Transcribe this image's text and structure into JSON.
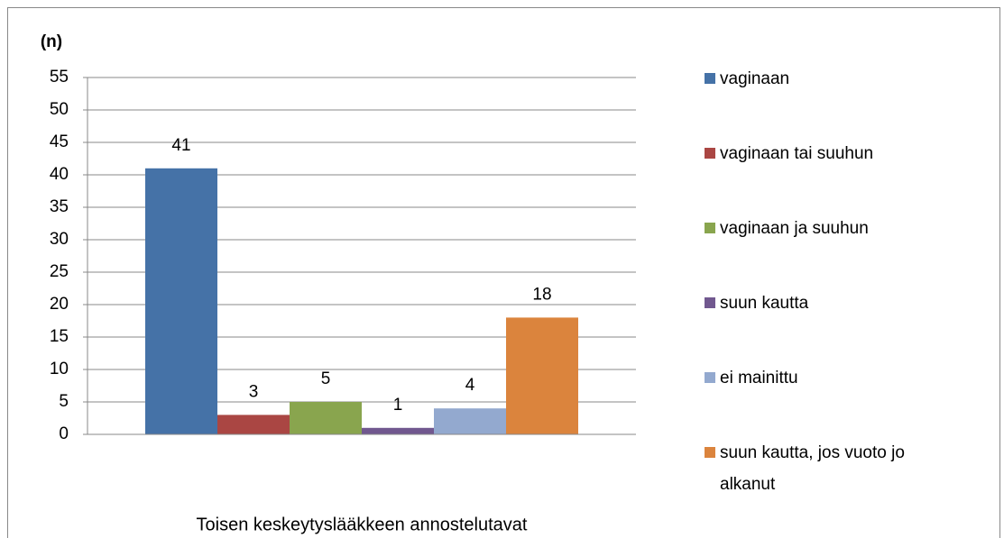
{
  "chart_data": {
    "type": "bar",
    "y_label": "(n)",
    "categories": [
      "Toisen keskeytyslääkkeen annostelutavat"
    ],
    "series": [
      {
        "name": "vaginaan",
        "color": "#4572a7",
        "values": [
          41
        ]
      },
      {
        "name": "vaginaan tai suuhun",
        "color": "#aa4643",
        "values": [
          3
        ]
      },
      {
        "name": "vaginaan ja suuhun",
        "color": "#89a54e",
        "values": [
          5
        ]
      },
      {
        "name": "suun kautta",
        "color": "#71588f",
        "values": [
          1
        ]
      },
      {
        "name": "ei mainittu",
        "color": "#93a9cf",
        "values": [
          4
        ]
      },
      {
        "name": "suun kautta, jos vuoto jo alkanut",
        "color": "#db843d",
        "values": [
          18
        ]
      }
    ],
    "ylim": [
      0,
      55
    ],
    "yticks": [
      0,
      5,
      10,
      15,
      20,
      25,
      30,
      35,
      40,
      45,
      50,
      55
    ],
    "grid": true,
    "legend": "right"
  }
}
